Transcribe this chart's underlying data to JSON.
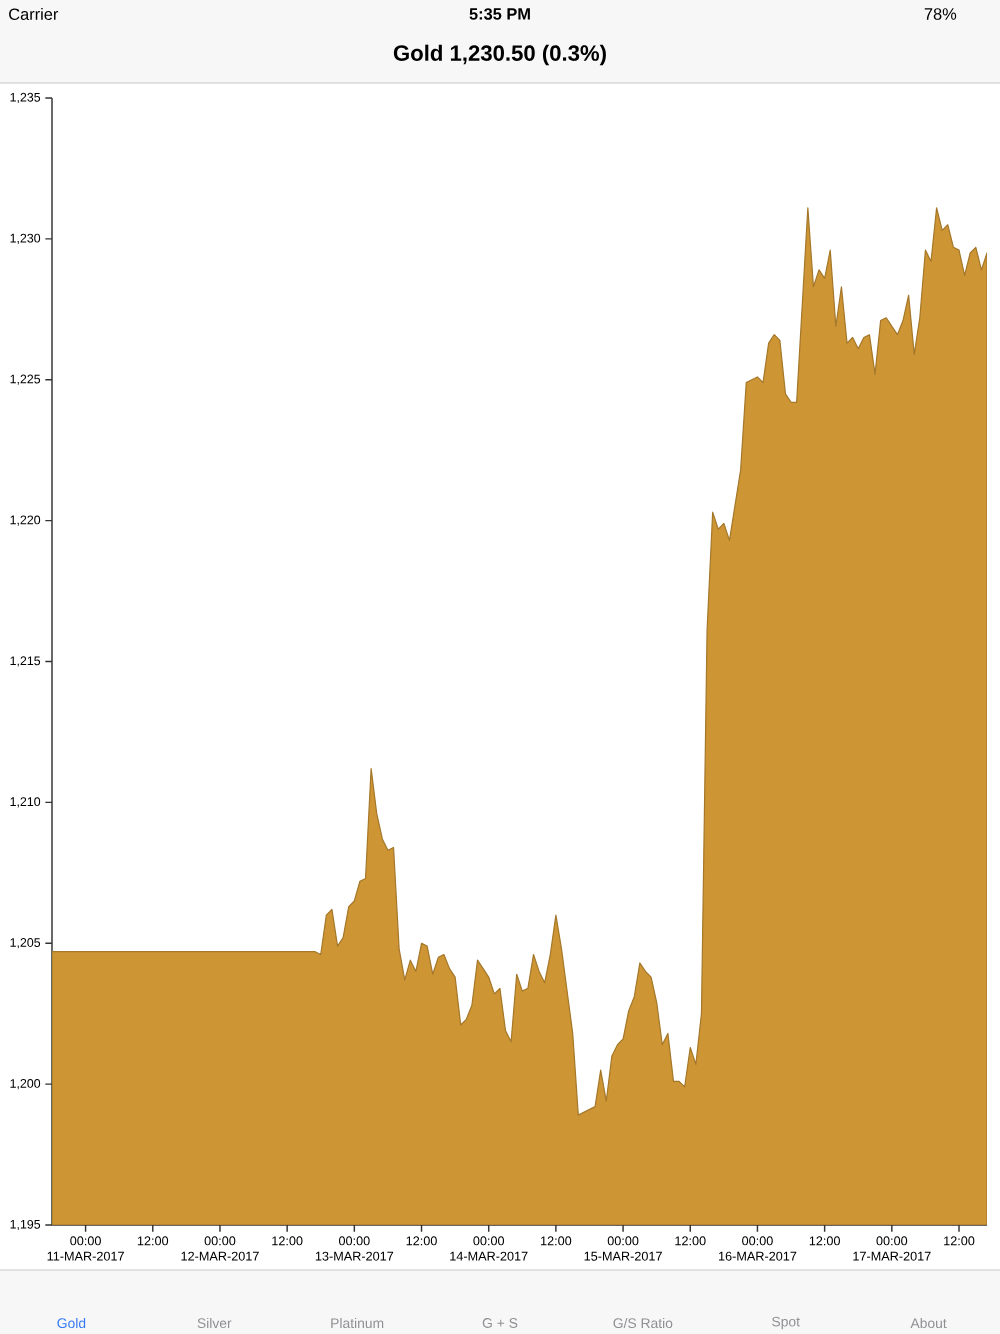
{
  "chart_data": {
    "type": "area",
    "title": "Gold 1,230.50 (0.3%)",
    "annotations": [
      "Carrier",
      "5:35 PM",
      "78%",
      "Gold",
      "Silver",
      "Platinum",
      "G + S",
      "G/S Ratio",
      "Spot",
      "About"
    ],
    "x": [
      "2017-03-10T18:00",
      "2017-03-12T17:00",
      "2017-03-12T18:00",
      "2017-03-12T19:00",
      "2017-03-12T20:00",
      "2017-03-12T21:00",
      "2017-03-12T22:00",
      "2017-03-12T23:00",
      "2017-03-13T00:00",
      "2017-03-13T01:00",
      "2017-03-13T02:00",
      "2017-03-13T03:00",
      "2017-03-13T04:00",
      "2017-03-13T05:00",
      "2017-03-13T06:00",
      "2017-03-13T07:00",
      "2017-03-13T08:00",
      "2017-03-13T09:00",
      "2017-03-13T10:00",
      "2017-03-13T11:00",
      "2017-03-13T12:00",
      "2017-03-13T13:00",
      "2017-03-13T14:00",
      "2017-03-13T15:00",
      "2017-03-13T16:00",
      "2017-03-13T17:00",
      "2017-03-13T18:00",
      "2017-03-13T19:00",
      "2017-03-13T20:00",
      "2017-03-13T21:00",
      "2017-03-13T22:00",
      "2017-03-13T23:00",
      "2017-03-14T00:00",
      "2017-03-14T01:00",
      "2017-03-14T02:00",
      "2017-03-14T03:00",
      "2017-03-14T04:00",
      "2017-03-14T05:00",
      "2017-03-14T06:00",
      "2017-03-14T07:00",
      "2017-03-14T08:00",
      "2017-03-14T09:00",
      "2017-03-14T10:00",
      "2017-03-14T11:00",
      "2017-03-14T12:00",
      "2017-03-14T13:00",
      "2017-03-14T15:00",
      "2017-03-14T16:00",
      "2017-03-14T17:00",
      "2017-03-14T18:00",
      "2017-03-14T19:00",
      "2017-03-14T20:00",
      "2017-03-14T21:00",
      "2017-03-14T22:00",
      "2017-03-14T23:00",
      "2017-03-15T00:00",
      "2017-03-15T01:00",
      "2017-03-15T02:00",
      "2017-03-15T03:00",
      "2017-03-15T04:00",
      "2017-03-15T05:00",
      "2017-03-15T06:00",
      "2017-03-15T07:00",
      "2017-03-15T08:00",
      "2017-03-15T09:00",
      "2017-03-15T10:00",
      "2017-03-15T11:00",
      "2017-03-15T12:00",
      "2017-03-15T13:00",
      "2017-03-15T14:00",
      "2017-03-15T15:00",
      "2017-03-15T16:00",
      "2017-03-15T17:00",
      "2017-03-15T18:00",
      "2017-03-15T19:00",
      "2017-03-15T21:00",
      "2017-03-15T22:00",
      "2017-03-15T23:00",
      "2017-03-16T00:00",
      "2017-03-16T01:00",
      "2017-03-16T02:00",
      "2017-03-16T03:00",
      "2017-03-16T04:00",
      "2017-03-16T05:00",
      "2017-03-16T06:00",
      "2017-03-16T07:00",
      "2017-03-16T09:00",
      "2017-03-16T10:00",
      "2017-03-16T11:00",
      "2017-03-16T12:00",
      "2017-03-16T13:00",
      "2017-03-16T14:00",
      "2017-03-16T15:00",
      "2017-03-16T16:00",
      "2017-03-16T17:00",
      "2017-03-16T18:00",
      "2017-03-16T19:00",
      "2017-03-16T20:00",
      "2017-03-16T21:00",
      "2017-03-16T22:00",
      "2017-03-16T23:00",
      "2017-03-17T00:00",
      "2017-03-17T01:00",
      "2017-03-17T02:00",
      "2017-03-17T03:00",
      "2017-03-17T04:00",
      "2017-03-17T05:00",
      "2017-03-17T06:00",
      "2017-03-17T07:00",
      "2017-03-17T08:00",
      "2017-03-17T09:00",
      "2017-03-17T10:00",
      "2017-03-17T11:00",
      "2017-03-17T12:00",
      "2017-03-17T13:00",
      "2017-03-17T14:00",
      "2017-03-17T15:00",
      "2017-03-17T16:00",
      "2017-03-17T17:00"
    ],
    "values": [
      1204.7,
      1204.7,
      1204.6,
      1206.0,
      1206.2,
      1204.9,
      1205.2,
      1206.3,
      1206.5,
      1207.2,
      1207.3,
      1211.2,
      1209.6,
      1208.7,
      1208.3,
      1208.4,
      1204.8,
      1203.7,
      1204.4,
      1204.0,
      1205.0,
      1204.9,
      1203.9,
      1204.5,
      1204.6,
      1204.1,
      1203.8,
      1202.1,
      1202.3,
      1202.8,
      1204.4,
      1204.1,
      1203.8,
      1203.2,
      1203.4,
      1201.9,
      1201.5,
      1203.9,
      1203.3,
      1203.4,
      1204.6,
      1204.0,
      1203.6,
      1204.6,
      1206.0,
      1204.8,
      1201.8,
      1198.9,
      1199.0,
      1199.1,
      1199.2,
      1200.5,
      1199.4,
      1201.0,
      1201.4,
      1201.6,
      1202.6,
      1203.1,
      1204.3,
      1204.0,
      1203.8,
      1202.9,
      1201.4,
      1201.8,
      1200.1,
      1200.1,
      1199.9,
      1201.3,
      1200.7,
      1202.5,
      1216.1,
      1220.3,
      1219.7,
      1219.9,
      1219.3,
      1221.8,
      1224.9,
      1225.0,
      1225.1,
      1224.9,
      1226.3,
      1226.6,
      1226.4,
      1224.5,
      1224.2,
      1224.2,
      1231.1,
      1228.3,
      1228.9,
      1228.6,
      1229.6,
      1226.9,
      1228.3,
      1226.3,
      1226.5,
      1226.1,
      1226.5,
      1226.6,
      1225.2,
      1227.1,
      1227.2,
      1226.9,
      1226.6,
      1227.1,
      1228.0,
      1225.9,
      1227.2,
      1229.6,
      1229.2,
      1231.1,
      1230.3,
      1230.5,
      1229.7,
      1229.6,
      1228.7,
      1229.5,
      1229.7,
      1228.9,
      1229.5
    ],
    "color": "#ce9534",
    "xlim": [
      "2017-03-10T18:00",
      "2017-03-17T17:00"
    ],
    "xticks": [
      {
        "value": "2017-03-11T00:00",
        "label": "00:00\n11-MAR-2017"
      },
      {
        "value": "2017-03-11T12:00",
        "label": "12:00"
      },
      {
        "value": "2017-03-12T00:00",
        "label": "00:00\n12-MAR-2017"
      },
      {
        "value": "2017-03-12T12:00",
        "label": "12:00"
      },
      {
        "value": "2017-03-13T00:00",
        "label": "00:00\n13-MAR-2017"
      },
      {
        "value": "2017-03-13T12:00",
        "label": "12:00"
      },
      {
        "value": "2017-03-14T00:00",
        "label": "00:00\n14-MAR-2017"
      },
      {
        "value": "2017-03-14T12:00",
        "label": "12:00"
      },
      {
        "value": "2017-03-15T00:00",
        "label": "00:00\n15-MAR-2017"
      },
      {
        "value": "2017-03-15T12:00",
        "label": "12:00"
      },
      {
        "value": "2017-03-16T00:00",
        "label": "00:00\n16-MAR-2017"
      },
      {
        "value": "2017-03-16T12:00",
        "label": "12:00"
      },
      {
        "value": "2017-03-17T00:00",
        "label": "00:00\n17-MAR-2017"
      },
      {
        "value": "2017-03-17T12:00",
        "label": "12:00"
      }
    ],
    "ylim": [
      1195,
      1235
    ],
    "yticks": [
      {
        "value": 1195,
        "label": "1,195"
      },
      {
        "value": 1200,
        "label": "1,200"
      },
      {
        "value": 1205,
        "label": "1,205"
      },
      {
        "value": 1210,
        "label": "1,210"
      },
      {
        "value": 1215,
        "label": "1,215"
      },
      {
        "value": 1220,
        "label": "1,220"
      },
      {
        "value": 1225,
        "label": "1,225"
      },
      {
        "value": 1230,
        "label": "1,230"
      },
      {
        "value": 1235,
        "label": "1,235"
      }
    ]
  }
}
